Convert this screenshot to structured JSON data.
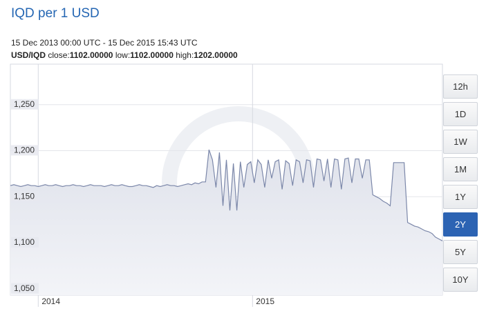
{
  "chart_data": {
    "type": "area",
    "title": "IQD per 1 USD",
    "subtitle": "15 Dec 2013 00:00 UTC - 15 Dec 2015 15:43 UTC",
    "pair": "USD/IQD",
    "stats": [
      {
        "label": "close:",
        "value": "1102.00000"
      },
      {
        "label": "low:",
        "value": "1102.00000"
      },
      {
        "label": "high:",
        "value": "1202.00000"
      }
    ],
    "values": [
      1162,
      1163,
      1162,
      1161,
      1162,
      1163,
      1162,
      1162,
      1161,
      1162,
      1163,
      1162,
      1162,
      1163,
      1162,
      1161,
      1162,
      1162,
      1163,
      1162,
      1162,
      1161,
      1162,
      1163,
      1162,
      1162,
      1162,
      1161,
      1162,
      1163,
      1162,
      1162,
      1163,
      1162,
      1161,
      1161,
      1162,
      1163,
      1162,
      1162,
      1161,
      1160,
      1162,
      1161,
      1162,
      1163,
      1162,
      1162,
      1161,
      1162,
      1163,
      1164,
      1163,
      1165,
      1164,
      1166,
      1166,
      1201,
      1190,
      1160,
      1198,
      1140,
      1190,
      1135,
      1186,
      1135,
      1188,
      1160,
      1185,
      1188,
      1165,
      1190,
      1185,
      1160,
      1190,
      1170,
      1188,
      1190,
      1158,
      1189,
      1186,
      1162,
      1190,
      1188,
      1165,
      1190,
      1189,
      1160,
      1191,
      1190,
      1167,
      1191,
      1160,
      1191,
      1190,
      1158,
      1191,
      1192,
      1165,
      1191,
      1191,
      1170,
      1190,
      1190,
      1152,
      1150,
      1148,
      1145,
      1143,
      1140,
      1187,
      1187,
      1187,
      1187,
      1122,
      1120,
      1118,
      1117,
      1115,
      1113,
      1112,
      1110,
      1106,
      1104,
      1102
    ],
    "color": "#7b87a9",
    "xlim": [
      0,
      124
    ],
    "xticks": [
      {
        "value": 8,
        "label": "2014"
      },
      {
        "value": 69.5,
        "label": "2015"
      }
    ],
    "ylim": [
      1043,
      1294
    ],
    "yticks": [
      {
        "value": 1050,
        "label": "1,050"
      },
      {
        "value": 1100,
        "label": "1,100"
      },
      {
        "value": 1150,
        "label": "1,150"
      },
      {
        "value": 1200,
        "label": "1,200"
      },
      {
        "value": 1250,
        "label": "1,250"
      }
    ],
    "grid": true
  },
  "range_buttons": [
    "12h",
    "1D",
    "1W",
    "1M",
    "1Y",
    "2Y",
    "5Y",
    "10Y"
  ],
  "selected_range": "2Y"
}
